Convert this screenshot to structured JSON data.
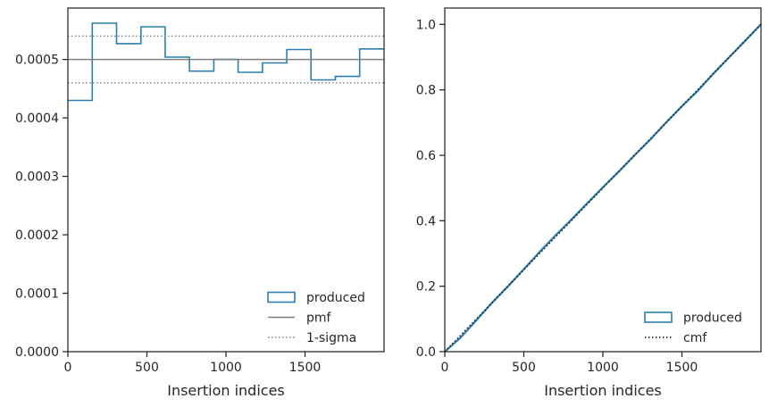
{
  "colors": {
    "produced": "#2a7fb0",
    "pmf": "#808080",
    "cmf": "#1a1a1a",
    "axes": "#262626"
  },
  "chart_data": [
    {
      "type": "line",
      "subtype": "step-histogram",
      "xlabel": "Insertion indices",
      "ylabel": "",
      "xlim": [
        0,
        2000
      ],
      "ylim": [
        0,
        0.000588
      ],
      "xticks": [
        0,
        500,
        1000,
        1500
      ],
      "yticks": [
        0.0,
        0.0001,
        0.0002,
        0.0003,
        0.0004,
        0.0005
      ],
      "xtick_labels": [
        "0",
        "500",
        "1000",
        "1500"
      ],
      "ytick_labels": [
        "0.0000",
        "0.0001",
        "0.0002",
        "0.0003",
        "0.0004",
        "0.0005"
      ],
      "bin_edges": [
        0,
        154,
        308,
        462,
        615,
        769,
        923,
        1077,
        1231,
        1385,
        1538,
        1692,
        1846,
        2000
      ],
      "series": [
        {
          "name": "produced",
          "style": "step",
          "values": [
            0.00043,
            0.000562,
            0.000527,
            0.000556,
            0.000504,
            0.00048,
            0.0005,
            0.000478,
            0.000494,
            0.000517,
            0.000465,
            0.000471,
            0.000518
          ]
        },
        {
          "name": "pmf",
          "style": "hline",
          "value": 0.0005
        },
        {
          "name": "1-sigma",
          "style": "hline-dotted",
          "values": [
            0.00046,
            0.00054
          ]
        }
      ],
      "legend": {
        "placement": "lower-right",
        "entries": [
          "produced",
          "pmf",
          "1-sigma"
        ]
      },
      "grid": false
    },
    {
      "type": "line",
      "xlabel": "Insertion indices",
      "ylabel": "",
      "xlim": [
        0,
        2000
      ],
      "ylim": [
        0,
        1.05
      ],
      "xticks": [
        0,
        500,
        1000,
        1500
      ],
      "yticks": [
        0.0,
        0.2,
        0.4,
        0.6,
        0.8,
        1.0
      ],
      "xtick_labels": [
        "0",
        "500",
        "1000",
        "1500"
      ],
      "ytick_labels": [
        "0.0",
        "0.2",
        "0.4",
        "0.6",
        "0.8",
        "1.0"
      ],
      "series": [
        {
          "name": "produced",
          "style": "solid",
          "x": [
            0,
            100,
            200,
            300,
            400,
            500,
            600,
            700,
            800,
            900,
            1000,
            1100,
            1200,
            1300,
            1400,
            1500,
            1600,
            1700,
            1800,
            1900,
            2000
          ],
          "y": [
            0,
            0.043,
            0.096,
            0.15,
            0.2,
            0.252,
            0.305,
            0.355,
            0.403,
            0.453,
            0.502,
            0.55,
            0.6,
            0.648,
            0.7,
            0.75,
            0.797,
            0.85,
            0.9,
            0.95,
            1.0
          ]
        },
        {
          "name": "cmf",
          "style": "dotted",
          "x": [
            0,
            2000
          ],
          "y": [
            0,
            1.0
          ]
        }
      ],
      "legend": {
        "placement": "lower-right",
        "entries": [
          "produced",
          "cmf"
        ]
      },
      "grid": false
    }
  ]
}
